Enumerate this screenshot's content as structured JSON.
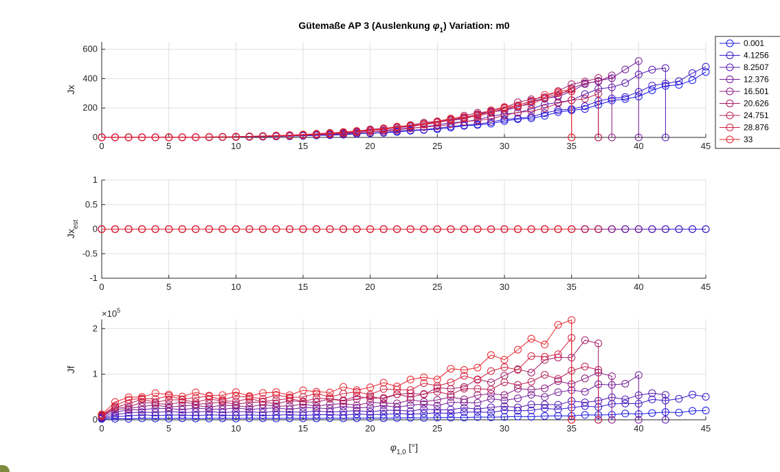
{
  "chart_data": {
    "type": "line",
    "title_main": "Gütemaße AP 3 (Auslenkung ",
    "title_sym": "φ",
    "title_sub": "1",
    "title_end": ")  Variation: m0",
    "xlabel_sym": "φ",
    "xlabel_sub": "1,0",
    "xlabel_unit": " [°]",
    "legend_placement": "outside-top-right",
    "grid": true,
    "legend": [
      "0.001",
      "4.1256",
      "8.2507",
      "12.376",
      "16.501",
      "20.626",
      "24.751",
      "28.876",
      "33"
    ],
    "series_colors": [
      "#1515e6",
      "#3616c8",
      "#5318b0",
      "#701a98",
      "#8a1b80",
      "#a31c68",
      "#bb1e52",
      "#d2203e",
      "#e8222c"
    ],
    "subplots": [
      {
        "name": "Jx",
        "ylabel": "Jx",
        "ylabel_sub": "",
        "exponent": "",
        "xlim": [
          0,
          45
        ],
        "ylim": [
          0,
          650
        ],
        "yticks": [
          0,
          200,
          400,
          600
        ],
        "ytick_labels": [
          "0",
          "200",
          "400",
          "600"
        ],
        "xticks": [
          0,
          5,
          10,
          15,
          20,
          25,
          30,
          35,
          40,
          45
        ],
        "xtick_labels": [
          "0",
          "5",
          "10",
          "15",
          "20",
          "25",
          "30",
          "35",
          "40",
          "45"
        ],
        "stability_limit": [
          45,
          45,
          42,
          40,
          38,
          37,
          37,
          35,
          35
        ],
        "peak_at_limit": [
          430,
          465,
          490,
          500,
          430,
          420,
          300,
          320,
          340
        ],
        "growth_exponent": 3.4
      },
      {
        "name": "Jx_est",
        "ylabel": "Jx",
        "ylabel_sub": "est",
        "exponent": "",
        "xlim": [
          0,
          45
        ],
        "ylim": [
          -1,
          1
        ],
        "yticks": [
          -1,
          -0.5,
          0,
          0.5,
          1
        ],
        "ytick_labels": [
          "-1",
          "-0.5",
          "0",
          "0.5",
          "1"
        ],
        "xticks": [
          0,
          5,
          10,
          15,
          20,
          25,
          30,
          35,
          40,
          45
        ],
        "xtick_labels": [
          "0",
          "5",
          "10",
          "15",
          "20",
          "25",
          "30",
          "35",
          "40",
          "45"
        ],
        "constant_value": 0
      },
      {
        "name": "Jf",
        "ylabel": "Jf",
        "ylabel_sub": "",
        "exponent_base": "×10",
        "exponent_power": "5",
        "xlim": [
          0,
          45
        ],
        "ylim": [
          0,
          2.2
        ],
        "yticks": [
          0,
          1,
          2
        ],
        "ytick_labels": [
          "0",
          "1",
          "2"
        ],
        "xticks": [
          0,
          5,
          10,
          15,
          20,
          25,
          30,
          35,
          40,
          45
        ],
        "xtick_labels": [
          "0",
          "5",
          "10",
          "15",
          "20",
          "25",
          "30",
          "35",
          "40",
          "45"
        ],
        "base_values": [
          0.03,
          0.1,
          0.17,
          0.24,
          0.3,
          0.36,
          0.42,
          0.48,
          0.55
        ],
        "peak_values": [
          0.2,
          0.55,
          0.6,
          0.9,
          1.05,
          1.75,
          1.2,
          1.65,
          2.15
        ]
      }
    ]
  }
}
